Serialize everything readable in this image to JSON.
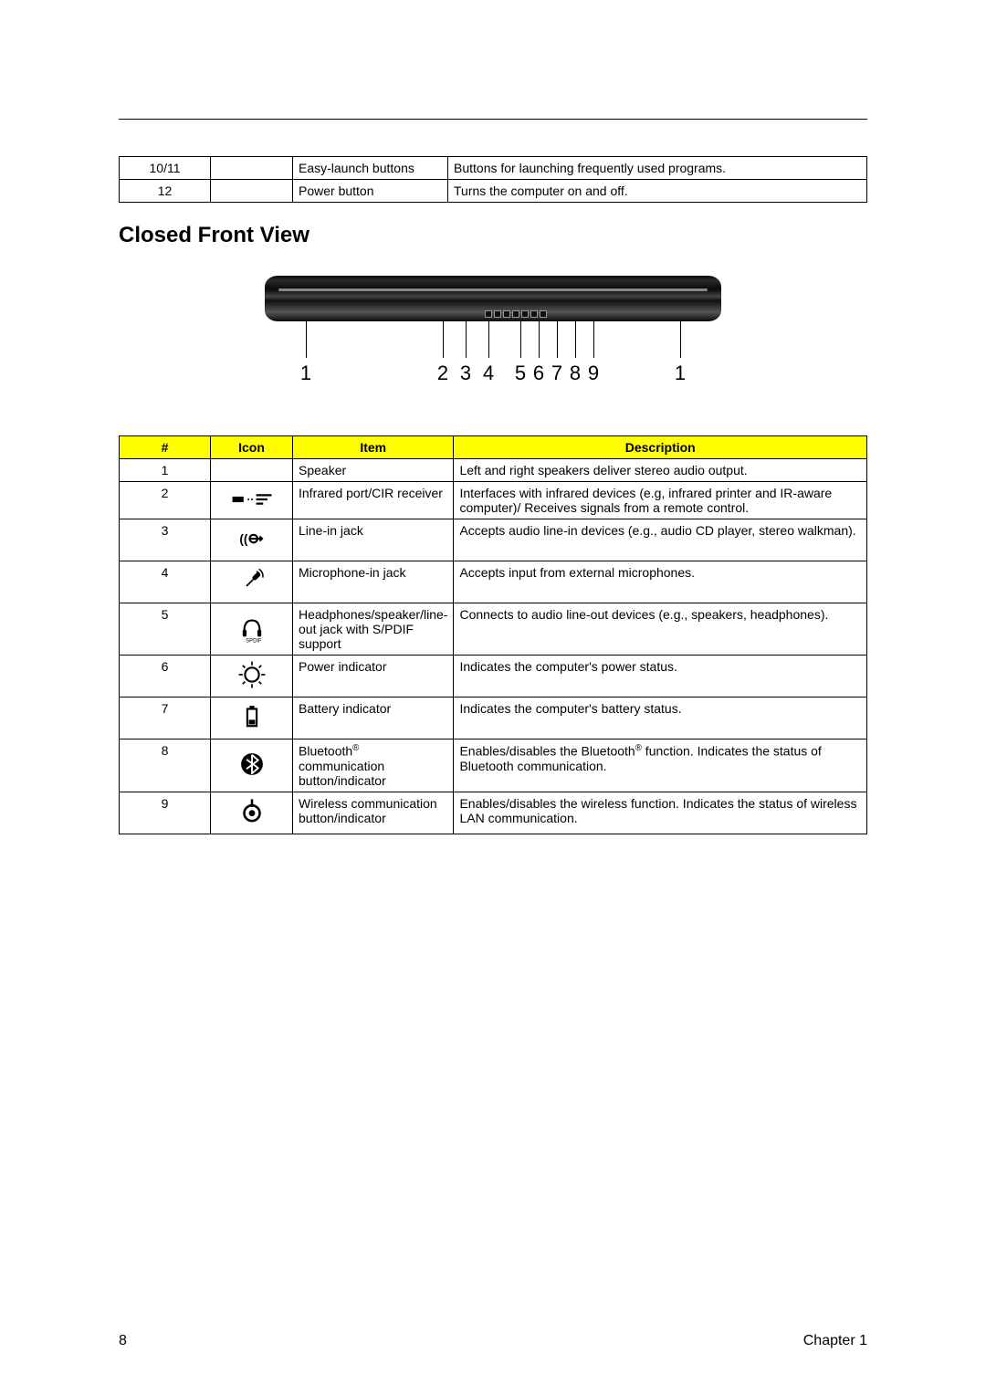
{
  "top_table": {
    "rows": [
      {
        "num": "10/11",
        "item": "Easy-launch buttons",
        "desc": "Buttons for launching frequently used programs."
      },
      {
        "num": "12",
        "item": "Power button",
        "desc": "Turns the computer on and off."
      }
    ]
  },
  "section_heading": "Closed Front View",
  "figure": {
    "callouts": [
      {
        "pos_pct": 9,
        "label": "1"
      },
      {
        "pos_pct": 39,
        "label": "2"
      },
      {
        "pos_pct": 44,
        "label": "3"
      },
      {
        "pos_pct": 49,
        "label": "4"
      },
      {
        "pos_pct": 56,
        "label": "5"
      },
      {
        "pos_pct": 60,
        "label": "6"
      },
      {
        "pos_pct": 64,
        "label": "7"
      },
      {
        "pos_pct": 68,
        "label": "8"
      },
      {
        "pos_pct": 72,
        "label": "9"
      },
      {
        "pos_pct": 91,
        "label": "1"
      }
    ]
  },
  "main_table": {
    "headers": {
      "num": "#",
      "icon": "Icon",
      "item": "Item",
      "desc": "Description"
    },
    "rows": [
      {
        "num": "1",
        "icon": "",
        "item": "Speaker",
        "desc": "Left and right speakers deliver stereo audio output."
      },
      {
        "num": "2",
        "icon": "ir",
        "item": "Infrared port/CIR receiver",
        "desc": "Interfaces with infrared devices (e.g, infrared printer and IR-aware computer)/ Receives signals from a remote control."
      },
      {
        "num": "3",
        "icon": "linein",
        "item": "Line-in jack",
        "desc": "Accepts audio line-in devices (e.g., audio CD player, stereo walkman)."
      },
      {
        "num": "4",
        "icon": "mic",
        "item": "Microphone-in jack",
        "desc": "Accepts input from external microphones."
      },
      {
        "num": "5",
        "icon": "headphones",
        "item": "Headphones/speaker/line-out jack with S/PDIF support",
        "desc": "Connects to audio line-out devices (e.g., speakers, headphones)."
      },
      {
        "num": "6",
        "icon": "power",
        "item": "Power indicator",
        "desc": "Indicates the computer's power status."
      },
      {
        "num": "7",
        "icon": "battery",
        "item": "Battery indicator",
        "desc": "Indicates the computer's battery status."
      },
      {
        "num": "8",
        "icon": "bluetooth",
        "item_html": "Bluetooth<sup>®</sup> communication button/indicator",
        "desc_html": "Enables/disables the Bluetooth<sup>®</sup> function. Indicates the status of Bluetooth communication."
      },
      {
        "num": "9",
        "icon": "wireless",
        "item": "Wireless communication button/indicator",
        "desc": "Enables/disables the wireless function. Indicates the status of wireless LAN communication."
      }
    ]
  },
  "footer": {
    "page": "8",
    "chapter": "Chapter 1"
  },
  "colors": {
    "header_bg": "#ffff00",
    "border": "#000000",
    "text": "#000000"
  }
}
